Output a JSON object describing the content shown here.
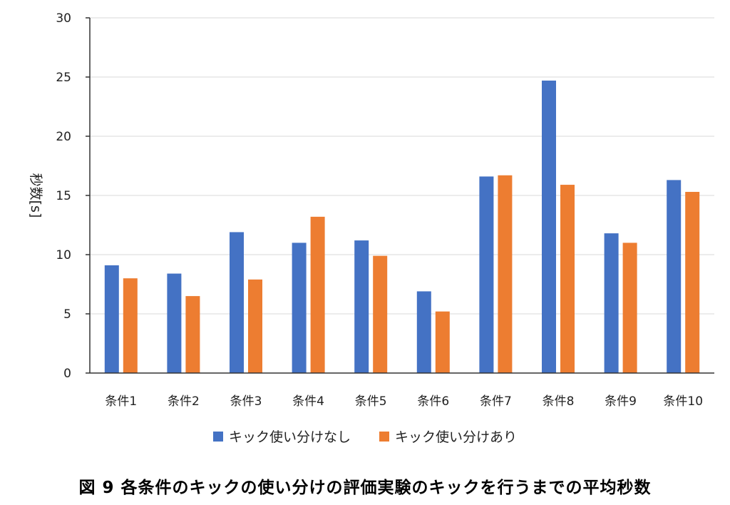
{
  "chart_data": {
    "type": "bar",
    "categories": [
      "条件1",
      "条件2",
      "条件3",
      "条件4",
      "条件5",
      "条件6",
      "条件7",
      "条件8",
      "条件9",
      "条件10"
    ],
    "series": [
      {
        "name": "キック使い分けなし",
        "color": "#4472C4",
        "values": [
          9.1,
          8.4,
          11.9,
          11.0,
          11.2,
          6.9,
          16.6,
          24.7,
          11.8,
          16.3
        ]
      },
      {
        "name": "キック使い分けあり",
        "color": "#ED7D31",
        "values": [
          8.0,
          6.5,
          7.9,
          13.2,
          9.9,
          5.2,
          16.7,
          15.9,
          11.0,
          15.3
        ]
      }
    ],
    "ylabel": "秒数[s]",
    "ylim": [
      0,
      30
    ],
    "yticks": [
      0,
      5,
      10,
      15,
      20,
      25,
      30
    ],
    "grid": true,
    "legend_position": "bottom"
  },
  "caption": "図 9 各条件のキックの使い分けの評価実験のキックを行うまでの平均秒数"
}
